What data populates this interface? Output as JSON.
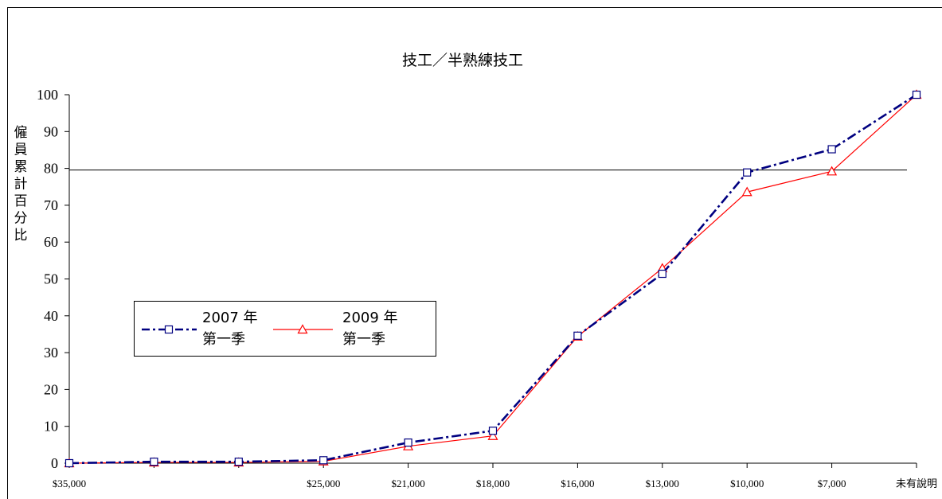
{
  "chart_data": {
    "type": "line",
    "title": "技工／半熟練技工",
    "xlabel": "",
    "ylabel": "僱員累計百分比",
    "ylim": [
      0,
      100
    ],
    "yticks": [
      "0",
      "10",
      "20",
      "30",
      "40",
      "50",
      "60",
      "70",
      "80",
      "90",
      "100"
    ],
    "categories": [
      "$35,000",
      "",
      "",
      "$25,000",
      "$21,000",
      "$18,000",
      "$16,000",
      "$13,000",
      "$10,000",
      "$7,000",
      "未有說明"
    ],
    "reference_line": 80,
    "grid": false,
    "legend_position": "left-middle",
    "series": [
      {
        "name": "2007 年\n第一季",
        "label_lines": [
          "2007 年",
          "第一季"
        ],
        "color": "#000080",
        "marker": "square",
        "line_style": "dash-dot",
        "values": [
          0,
          0.4,
          0.4,
          0.8,
          5.6,
          8.8,
          34.6,
          51.4,
          78.9,
          85.2,
          100
        ]
      },
      {
        "name": "2009 年\n第一季",
        "label_lines": [
          "2009 年",
          "第一季"
        ],
        "color": "#ff0000",
        "marker": "triangle",
        "line_style": "solid",
        "values": [
          0,
          0.2,
          0.2,
          0.5,
          4.6,
          7.4,
          34.4,
          52.9,
          73.6,
          79.2,
          100
        ]
      }
    ]
  }
}
